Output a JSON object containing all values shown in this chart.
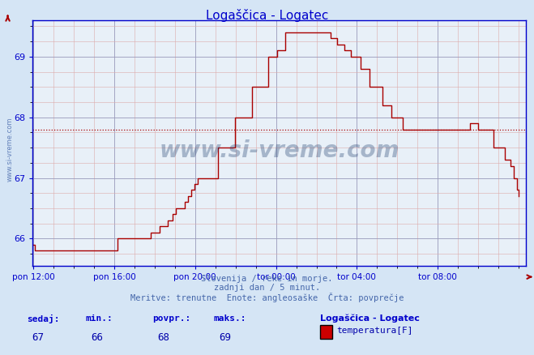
{
  "title": "Logaščica - Logatec",
  "bg_color": "#d5e5f5",
  "plot_bg_color": "#e8f0f8",
  "line_color": "#aa0000",
  "grid_major_color": "#9999bb",
  "grid_minor_color": "#ddaaaa",
  "avg_value": 67.79,
  "ylim": [
    65.55,
    69.6
  ],
  "yticks": [
    66,
    67,
    68,
    69
  ],
  "xlabel_ticks": [
    "pon 12:00",
    "pon 16:00",
    "pon 20:00",
    "tor 00:00",
    "tor 04:00",
    "tor 08:00"
  ],
  "footer_line1": "Slovenija / reke in morje.",
  "footer_line2": "zadnji dan / 5 minut.",
  "footer_line3": "Meritve: trenutne  Enote: angleosaške  Črta: povprečje",
  "legend_title": "Logaščica - Logatec",
  "legend_label": "temperatura[F]",
  "legend_color": "#cc0000",
  "stats_labels": [
    "sedaj:",
    "min.:",
    "povpr.:",
    "maks.:"
  ],
  "stats_values": [
    "67",
    "66",
    "68",
    "69"
  ],
  "title_color": "#0000cc",
  "axis_color": "#0000cc",
  "footer_color": "#4466aa",
  "stats_label_color": "#0000cc",
  "stats_value_color": "#0000aa",
  "watermark_text": "www.si-vreme.com",
  "watermark_color": "#1a3a6a",
  "y_data": [
    65.9,
    65.8,
    65.8,
    65.8,
    65.8,
    65.8,
    65.8,
    65.8,
    65.8,
    65.8,
    65.8,
    65.8,
    65.8,
    65.8,
    65.8,
    65.8,
    65.8,
    65.8,
    65.8,
    65.8,
    65.8,
    65.8,
    65.8,
    65.8,
    65.8,
    65.8,
    65.8,
    65.8,
    65.8,
    65.8,
    65.8,
    65.8,
    65.8,
    65.8,
    65.8,
    65.8,
    65.8,
    65.8,
    65.8,
    65.8,
    65.8,
    65.8,
    65.8,
    65.8,
    65.8,
    65.8,
    65.8,
    65.8,
    65.8,
    65.8,
    66.0,
    66.0,
    66.0,
    66.0,
    66.0,
    66.0,
    66.0,
    66.0,
    66.0,
    66.0,
    66.0,
    66.0,
    66.0,
    66.0,
    66.0,
    66.0,
    66.0,
    66.0,
    66.0,
    66.0,
    66.1,
    66.1,
    66.1,
    66.1,
    66.1,
    66.2,
    66.2,
    66.2,
    66.2,
    66.2,
    66.3,
    66.3,
    66.3,
    66.4,
    66.4,
    66.5,
    66.5,
    66.5,
    66.5,
    66.5,
    66.6,
    66.6,
    66.7,
    66.7,
    66.8,
    66.8,
    66.9,
    66.9,
    67.0,
    67.0,
    67.0,
    67.0,
    67.0,
    67.0,
    67.0,
    67.0,
    67.0,
    67.0,
    67.0,
    67.0,
    67.5,
    67.5,
    67.5,
    67.5,
    67.5,
    67.5,
    67.5,
    67.5,
    67.5,
    67.5,
    68.0,
    68.0,
    68.0,
    68.0,
    68.0,
    68.0,
    68.0,
    68.0,
    68.0,
    68.0,
    68.5,
    68.5,
    68.5,
    68.5,
    68.5,
    68.5,
    68.5,
    68.5,
    68.5,
    68.5,
    69.0,
    69.0,
    69.0,
    69.0,
    69.0,
    69.1,
    69.1,
    69.1,
    69.1,
    69.1,
    69.4,
    69.4,
    69.4,
    69.4,
    69.4,
    69.4,
    69.4,
    69.4,
    69.4,
    69.4,
    69.4,
    69.4,
    69.4,
    69.4,
    69.4,
    69.4,
    69.4,
    69.4,
    69.4,
    69.4,
    69.4,
    69.4,
    69.4,
    69.4,
    69.4,
    69.4,
    69.4,
    69.3,
    69.3,
    69.3,
    69.3,
    69.2,
    69.2,
    69.2,
    69.2,
    69.1,
    69.1,
    69.1,
    69.1,
    69.0,
    69.0,
    69.0,
    69.0,
    69.0,
    69.0,
    68.8,
    68.8,
    68.8,
    68.8,
    68.8,
    68.5,
    68.5,
    68.5,
    68.5,
    68.5,
    68.5,
    68.5,
    68.5,
    68.2,
    68.2,
    68.2,
    68.2,
    68.2,
    68.0,
    68.0,
    68.0,
    68.0,
    68.0,
    68.0,
    68.0,
    67.8,
    67.8,
    67.8,
    67.8,
    67.8,
    67.8,
    67.8,
    67.8,
    67.8,
    67.8,
    67.8,
    67.8,
    67.8,
    67.8,
    67.8,
    67.8,
    67.8,
    67.8,
    67.8,
    67.8,
    67.8,
    67.8,
    67.8,
    67.8,
    67.8,
    67.8,
    67.8,
    67.8,
    67.8,
    67.8,
    67.8,
    67.8,
    67.8,
    67.8,
    67.8,
    67.8,
    67.8,
    67.8,
    67.8,
    67.8,
    67.9,
    67.9,
    67.9,
    67.9,
    67.9,
    67.8,
    67.8,
    67.8,
    67.8,
    67.8,
    67.8,
    67.8,
    67.8,
    67.8,
    67.5,
    67.5,
    67.5,
    67.5,
    67.5,
    67.5,
    67.5,
    67.3,
    67.3,
    67.3,
    67.2,
    67.2,
    67.0,
    67.0,
    66.8,
    66.7
  ]
}
